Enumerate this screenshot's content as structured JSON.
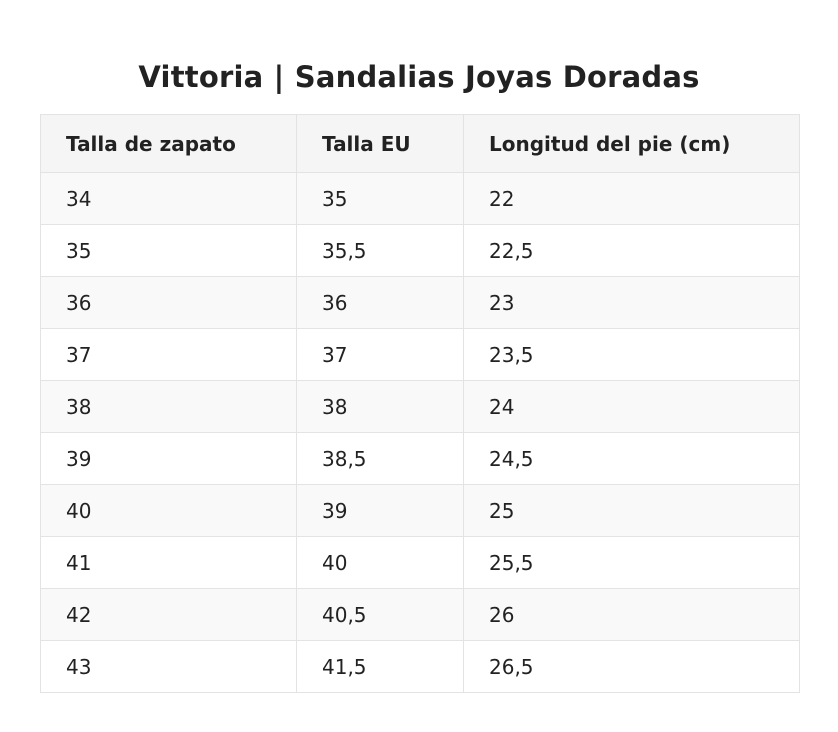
{
  "title": "Vittoria | Sandalias Joyas Doradas",
  "table": {
    "headers": [
      "Talla de zapato",
      "Talla EU",
      "Longitud del pie (cm)"
    ],
    "rows": [
      [
        "34",
        "35",
        "22"
      ],
      [
        "35",
        "35,5",
        "22,5"
      ],
      [
        "36",
        "36",
        "23"
      ],
      [
        "37",
        "37",
        "23,5"
      ],
      [
        "38",
        "38",
        "24"
      ],
      [
        "39",
        "38,5",
        "24,5"
      ],
      [
        "40",
        "39",
        "25"
      ],
      [
        "41",
        "40",
        "25,5"
      ],
      [
        "42",
        "40,5",
        "26"
      ],
      [
        "43",
        "41,5",
        "26,5"
      ]
    ]
  }
}
